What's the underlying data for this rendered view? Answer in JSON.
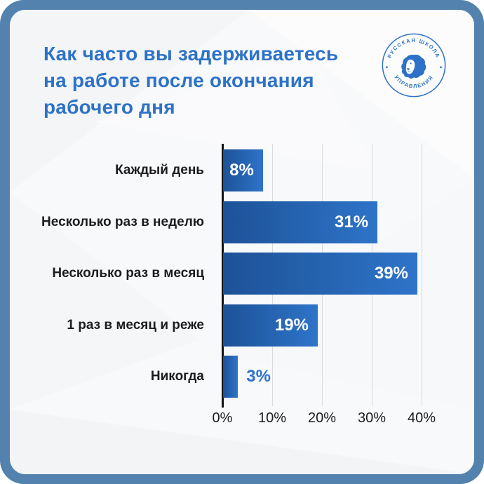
{
  "header": {
    "title_lines": [
      "Как часто вы задерживаетесь",
      "на работе после окончания",
      "рабочего дня"
    ]
  },
  "logo": {
    "name": "Русская школа управления",
    "arc_top": "РУССКАЯ ШКОЛА",
    "arc_bottom": "УПРАВЛЕНИЯ",
    "separator_left": "◆",
    "separator_right": "◆"
  },
  "chart_data": {
    "type": "bar",
    "orientation": "horizontal",
    "title": "Как часто вы задерживаетесь на работе после окончания рабочего дня",
    "categories": [
      "Каждый день",
      "Несколько раз в неделю",
      "Несколько раз в месяц",
      "1 раз в месяц и реже",
      "Никогда"
    ],
    "values": [
      8,
      31,
      39,
      19,
      3
    ],
    "value_labels": [
      "8%",
      "31%",
      "39%",
      "19%",
      "3%"
    ],
    "x_ticks": [
      "0%",
      "10%",
      "20%",
      "30%",
      "40%"
    ],
    "x_tick_values": [
      0,
      10,
      20,
      30,
      40
    ],
    "xlim": [
      0,
      40
    ],
    "grid": true,
    "legend": false,
    "colors": {
      "bar_gradient_start": "#1d5297",
      "bar_gradient_end": "#2e74c9",
      "value_label_inside": "#ffffff",
      "value_label_outside": "#2d72c8",
      "axis_line": "#121212",
      "gridline": "#d8dadc",
      "category_label": "#1c1c1e"
    }
  },
  "colors": {
    "frame": "#5282ad",
    "card": "#f8f9fa",
    "title": "#2d72c8",
    "brand": "#2d72c8"
  }
}
